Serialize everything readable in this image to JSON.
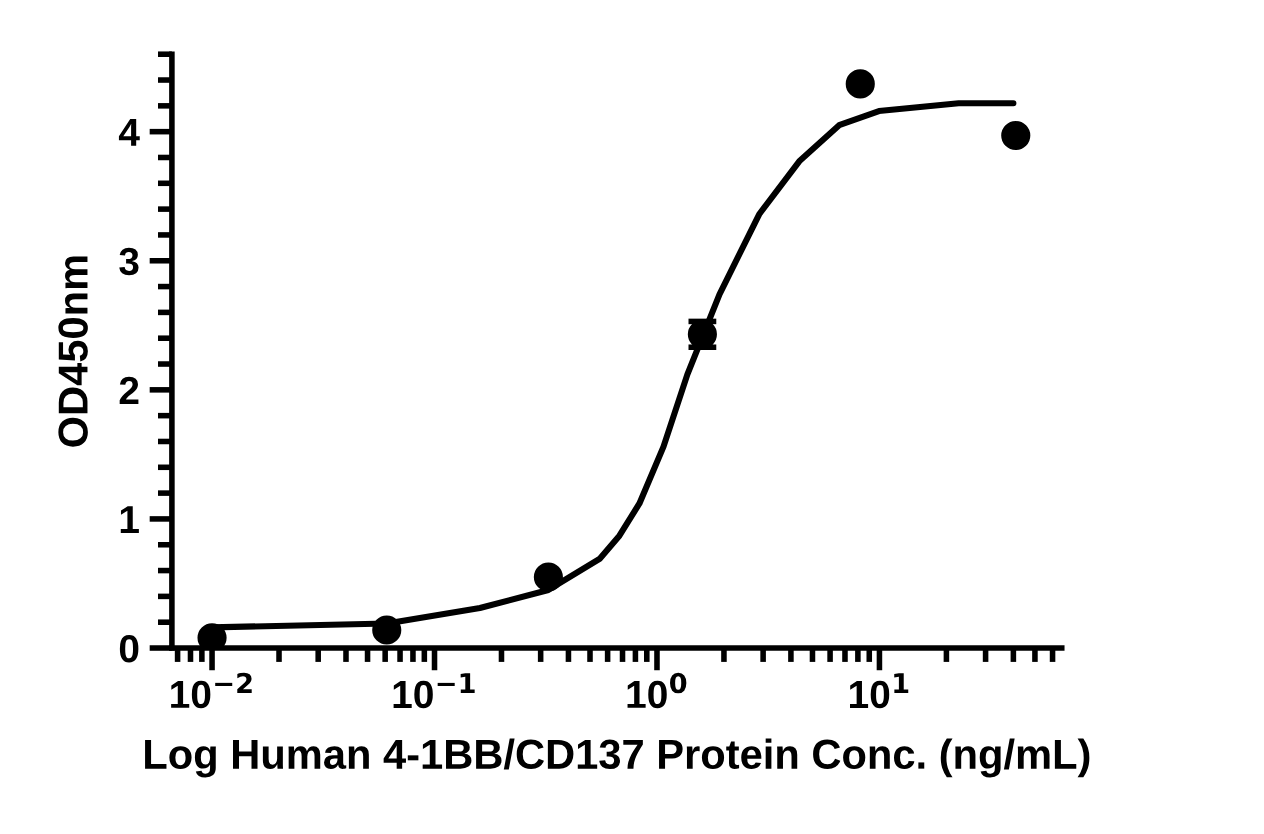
{
  "chart_data": {
    "type": "scatter",
    "xlabel": "Log Human 4-1BB/CD137 Protein Conc. (ng/mL)",
    "ylabel": "OD450nm",
    "log": "x",
    "grid": false,
    "legend": false,
    "xlim": [
      0.0066,
      66
    ],
    "ylim": [
      0,
      4.6
    ],
    "xticks": [
      {
        "value": 0.007,
        "label": null
      },
      {
        "value": 0.008,
        "label": null
      },
      {
        "value": 0.009,
        "label": null
      },
      {
        "value": 0.01,
        "label": "10$^{−2}$"
      },
      {
        "value": 0.02,
        "label": null
      },
      {
        "value": 0.03,
        "label": null
      },
      {
        "value": 0.04,
        "label": null
      },
      {
        "value": 0.05,
        "label": null
      },
      {
        "value": 0.06,
        "label": null
      },
      {
        "value": 0.07,
        "label": null
      },
      {
        "value": 0.08,
        "label": null
      },
      {
        "value": 0.09,
        "label": null
      },
      {
        "value": 0.1,
        "label": "10$^{−1}$"
      },
      {
        "value": 0.2,
        "label": null
      },
      {
        "value": 0.3,
        "label": null
      },
      {
        "value": 0.4,
        "label": null
      },
      {
        "value": 0.5,
        "label": null
      },
      {
        "value": 0.6,
        "label": null
      },
      {
        "value": 0.7,
        "label": null
      },
      {
        "value": 0.8,
        "label": null
      },
      {
        "value": 0.9,
        "label": null
      },
      {
        "value": 1,
        "label": "10$^{0}$"
      },
      {
        "value": 2,
        "label": null
      },
      {
        "value": 3,
        "label": null
      },
      {
        "value": 4,
        "label": null
      },
      {
        "value": 5,
        "label": null
      },
      {
        "value": 6,
        "label": null
      },
      {
        "value": 7,
        "label": null
      },
      {
        "value": 8,
        "label": null
      },
      {
        "value": 9,
        "label": null
      },
      {
        "value": 10,
        "label": "10$^{1}$"
      },
      {
        "value": 20,
        "label": null
      },
      {
        "value": 30,
        "label": null
      },
      {
        "value": 40,
        "label": null
      },
      {
        "value": 50,
        "label": null
      },
      {
        "value": 60,
        "label": null
      }
    ],
    "yticks": [
      0,
      {
        "value": 0.2,
        "label": null
      },
      {
        "value": 0.4,
        "label": null
      },
      {
        "value": 0.6,
        "label": null
      },
      {
        "value": 0.8,
        "label": null
      },
      1,
      {
        "value": 1.2,
        "label": null
      },
      {
        "value": 1.4,
        "label": null
      },
      {
        "value": 1.6,
        "label": null
      },
      {
        "value": 1.8,
        "label": null
      },
      2,
      {
        "value": 2.2,
        "label": null
      },
      {
        "value": 2.4,
        "label": null
      },
      {
        "value": 2.6,
        "label": null
      },
      {
        "value": 2.8,
        "label": null
      },
      3,
      {
        "value": 3.2,
        "label": null
      },
      {
        "value": 3.4,
        "label": null
      },
      {
        "value": 3.6,
        "label": null
      },
      {
        "value": 3.8,
        "label": null
      },
      4,
      {
        "value": 4.2,
        "label": null
      },
      {
        "value": 4.4,
        "label": null
      },
      {
        "value": 4.6,
        "label": null
      }
    ],
    "series": [
      {
        "color": "#000000",
        "marker": "circle",
        "x": [
          0.01,
          0.061,
          0.325,
          1.6,
          8.2,
          41
        ],
        "values": [
          0.08,
          0.14,
          0.55,
          2.43,
          4.37,
          3.97
        ],
        "errors": [
          null,
          null,
          null,
          0.1,
          null,
          null
        ]
      },
      {
        "type": "line",
        "color": "#000000",
        "marker": "none",
        "line_style": "solid",
        "x": [
          0.01,
          0.061,
          0.16,
          0.325,
          0.552,
          0.678,
          0.834,
          1.07,
          1.37,
          1.91,
          2.88,
          4.36,
          6.59,
          9.95,
          22.7,
          40
        ],
        "values": [
          0.16,
          0.19,
          0.31,
          0.45,
          0.69,
          0.87,
          1.12,
          1.56,
          2.12,
          2.74,
          3.36,
          3.77,
          4.05,
          4.16,
          4.22,
          4.22
        ]
      }
    ]
  }
}
